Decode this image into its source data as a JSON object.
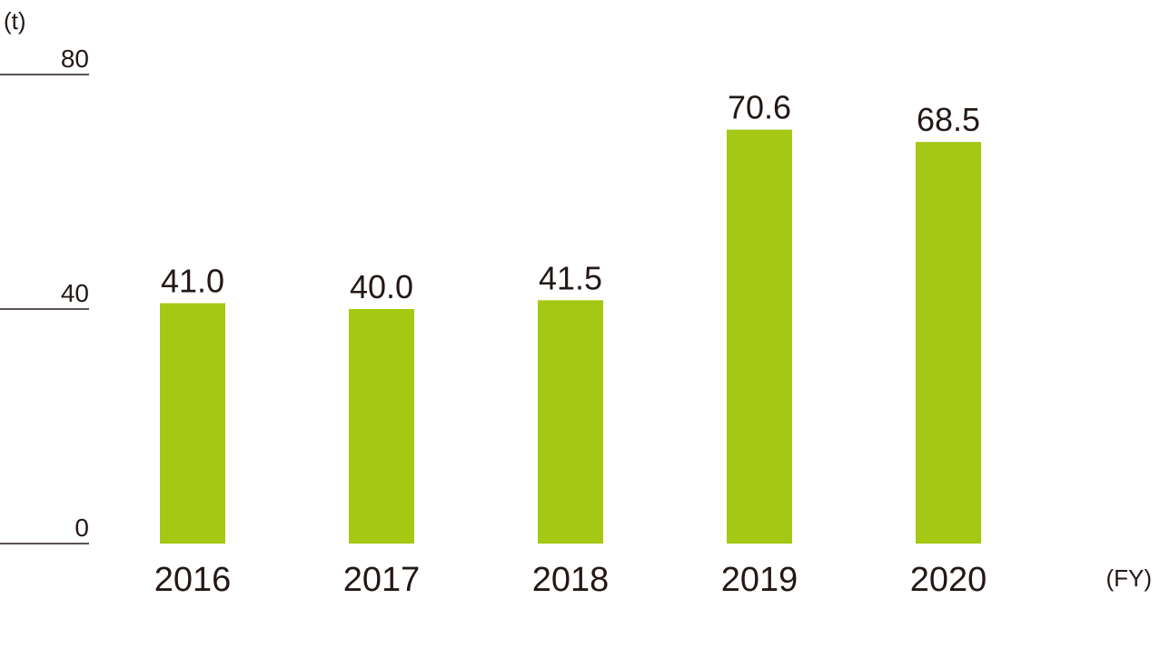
{
  "chart_data": {
    "type": "bar",
    "ylabel": "(t)",
    "xlabel": "(FY)",
    "categories": [
      "2016",
      "2017",
      "2018",
      "2019",
      "2020"
    ],
    "values": [
      41.0,
      40.0,
      41.5,
      70.6,
      68.5
    ],
    "value_labels": [
      "41.0",
      "40.0",
      "41.5",
      "70.6",
      "68.5"
    ],
    "ylim": [
      0,
      80
    ],
    "yticks": [
      0,
      40,
      80
    ],
    "ytick_labels": [
      "0",
      "40",
      "80"
    ],
    "grid": false,
    "bar_color": "#a4c813"
  }
}
